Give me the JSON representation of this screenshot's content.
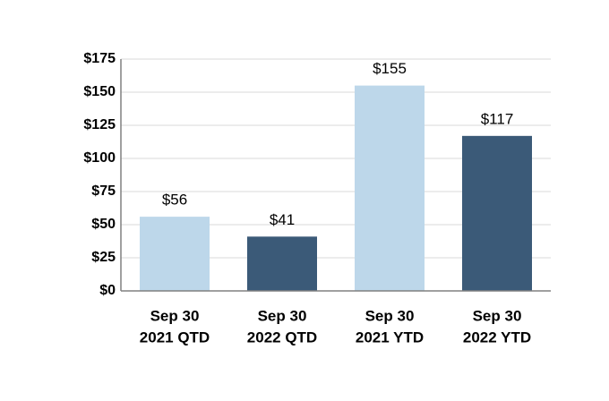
{
  "chart_data": {
    "type": "bar",
    "categories": [
      [
        "Sep 30",
        "2021 QTD"
      ],
      [
        "Sep 30",
        "2022 QTD"
      ],
      [
        "Sep 30",
        "2021 YTD"
      ],
      [
        "Sep 30",
        "2022 YTD"
      ]
    ],
    "values": [
      56,
      41,
      155,
      117
    ],
    "value_labels": [
      "$56",
      "$41",
      "$155",
      "$117"
    ],
    "colors": [
      "#bdd7ea",
      "#3b5a78",
      "#bdd7ea",
      "#3b5a78"
    ],
    "ylim": [
      0,
      175
    ],
    "yticks": [
      {
        "value": 0,
        "label": "$0"
      },
      {
        "value": 25,
        "label": "$25"
      },
      {
        "value": 50,
        "label": "$50"
      },
      {
        "value": 75,
        "label": "$75"
      },
      {
        "value": 100,
        "label": "$100"
      },
      {
        "value": 125,
        "label": "$125"
      },
      {
        "value": 150,
        "label": "$150"
      },
      {
        "value": 175,
        "label": "$175"
      }
    ],
    "grid": true
  }
}
